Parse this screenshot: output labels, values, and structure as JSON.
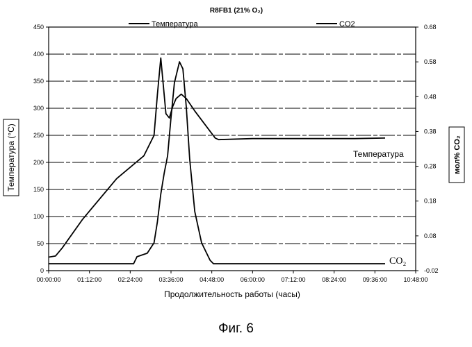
{
  "figure_caption": "Фиг. 6",
  "colors": {
    "line": "#000000",
    "grid": "#000000",
    "background": "#ffffff"
  },
  "chart_data": {
    "type": "line",
    "title": "R8FB1 (21% O₂)",
    "xlabel": "Продолжительность работы (часы)",
    "ylabel": "Температура (°C)",
    "y2label": "мол% CO₂",
    "x_unit": "hours",
    "x_ticks": [
      "00:00:00",
      "01:12:00",
      "02:24:00",
      "03:36:00",
      "04:48:00",
      "06:00:00",
      "07:12:00",
      "08:24:00",
      "09:36:00",
      "10:48:00"
    ],
    "xlim": [
      0,
      10.8
    ],
    "ylim": [
      0,
      450
    ],
    "y_ticks": [
      0,
      50,
      100,
      150,
      200,
      250,
      300,
      350,
      400,
      450
    ],
    "y2lim": [
      -0.02,
      0.68
    ],
    "y2_ticks": [
      "-0.02",
      "0.08",
      "0.18",
      "0.28",
      "0.38",
      "0.48",
      "0.58",
      "0.68"
    ],
    "y2_tick_values": [
      -0.02,
      0.08,
      0.18,
      0.28,
      0.38,
      0.48,
      0.58,
      0.68
    ],
    "grid": true,
    "legend_position": "top",
    "series": [
      {
        "name": "Температура",
        "axis": "left",
        "x": [
          0,
          0.2,
          0.4,
          1.0,
          2.0,
          2.8,
          3.1,
          3.2,
          3.3,
          3.45,
          3.55,
          3.65,
          3.75,
          3.9,
          4.05,
          4.3,
          4.6,
          4.9,
          5.0,
          6.0,
          7.0,
          8.0,
          9.0,
          9.9
        ],
        "y": [
          25,
          27,
          42,
          95,
          170,
          212,
          250,
          325,
          393,
          290,
          282,
          303,
          318,
          326,
          318,
          295,
          270,
          245,
          242,
          244,
          244,
          244,
          244,
          245
        ]
      },
      {
        "name": "CO2",
        "axis": "right",
        "x": [
          0,
          1.0,
          2.0,
          2.5,
          2.6,
          2.9,
          3.1,
          3.2,
          3.3,
          3.4,
          3.5,
          3.6,
          3.7,
          3.85,
          3.95,
          4.05,
          4.15,
          4.3,
          4.5,
          4.75,
          4.85,
          5.0,
          6.0,
          7.0,
          8.0,
          9.0,
          9.9
        ],
        "y": [
          0,
          0,
          0,
          0,
          0.02,
          0.03,
          0.06,
          0.12,
          0.2,
          0.26,
          0.31,
          0.42,
          0.52,
          0.58,
          0.56,
          0.45,
          0.3,
          0.15,
          0.06,
          0.01,
          0,
          0,
          0,
          0,
          0,
          0,
          0
        ]
      }
    ],
    "annotations": [
      {
        "text": "Температура",
        "near_series": "Температура"
      },
      {
        "text": "CO₂",
        "near_series": "CO2"
      }
    ]
  }
}
